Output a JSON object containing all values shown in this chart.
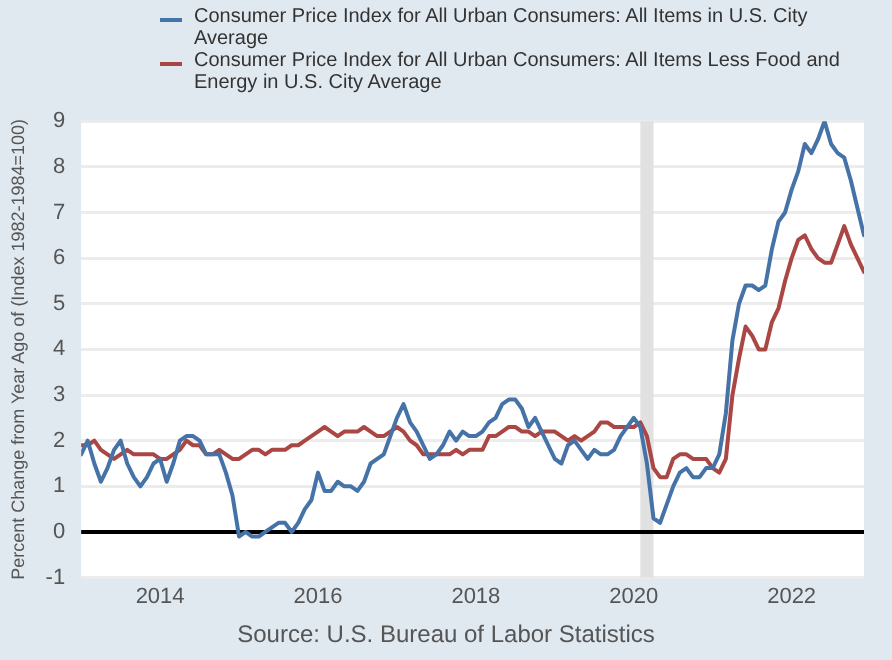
{
  "chart_data": {
    "type": "line",
    "ylabel": "Percent Change from Year Ago of (Index 1982-1984=100)",
    "x": [
      "2013-01",
      "2013-02",
      "2013-03",
      "2013-04",
      "2013-05",
      "2013-06",
      "2013-07",
      "2013-08",
      "2013-09",
      "2013-10",
      "2013-11",
      "2013-12",
      "2014-01",
      "2014-02",
      "2014-03",
      "2014-04",
      "2014-05",
      "2014-06",
      "2014-07",
      "2014-08",
      "2014-09",
      "2014-10",
      "2014-11",
      "2014-12",
      "2015-01",
      "2015-02",
      "2015-03",
      "2015-04",
      "2015-05",
      "2015-06",
      "2015-07",
      "2015-08",
      "2015-09",
      "2015-10",
      "2015-11",
      "2015-12",
      "2016-01",
      "2016-02",
      "2016-03",
      "2016-04",
      "2016-05",
      "2016-06",
      "2016-07",
      "2016-08",
      "2016-09",
      "2016-10",
      "2016-11",
      "2016-12",
      "2017-01",
      "2017-02",
      "2017-03",
      "2017-04",
      "2017-05",
      "2017-06",
      "2017-07",
      "2017-08",
      "2017-09",
      "2017-10",
      "2017-11",
      "2017-12",
      "2018-01",
      "2018-02",
      "2018-03",
      "2018-04",
      "2018-05",
      "2018-06",
      "2018-07",
      "2018-08",
      "2018-09",
      "2018-10",
      "2018-11",
      "2018-12",
      "2019-01",
      "2019-02",
      "2019-03",
      "2019-04",
      "2019-05",
      "2019-06",
      "2019-07",
      "2019-08",
      "2019-09",
      "2019-10",
      "2019-11",
      "2019-12",
      "2020-01",
      "2020-02",
      "2020-03",
      "2020-04",
      "2020-05",
      "2020-06",
      "2020-07",
      "2020-08",
      "2020-09",
      "2020-10",
      "2020-11",
      "2020-12",
      "2021-01",
      "2021-02",
      "2021-03",
      "2021-04",
      "2021-05",
      "2021-06",
      "2021-07",
      "2021-08",
      "2021-09",
      "2021-10",
      "2021-11",
      "2021-12",
      "2022-01",
      "2022-02",
      "2022-03",
      "2022-04",
      "2022-05",
      "2022-06",
      "2022-07",
      "2022-08",
      "2022-09",
      "2022-10",
      "2022-11",
      "2022-12"
    ],
    "series": [
      {
        "name": "Consumer Price Index for All Urban Consumers: All Items in U.S. City Average",
        "color": "#4572a7",
        "values": [
          1.7,
          2.0,
          1.5,
          1.1,
          1.4,
          1.8,
          2.0,
          1.5,
          1.2,
          1.0,
          1.2,
          1.5,
          1.6,
          1.1,
          1.5,
          2.0,
          2.1,
          2.1,
          2.0,
          1.7,
          1.7,
          1.7,
          1.3,
          0.8,
          -0.1,
          0.0,
          -0.1,
          -0.1,
          0.0,
          0.1,
          0.2,
          0.2,
          0.0,
          0.2,
          0.5,
          0.7,
          1.3,
          0.9,
          0.9,
          1.1,
          1.0,
          1.0,
          0.9,
          1.1,
          1.5,
          1.6,
          1.7,
          2.1,
          2.5,
          2.8,
          2.4,
          2.2,
          1.9,
          1.6,
          1.7,
          1.9,
          2.2,
          2.0,
          2.2,
          2.1,
          2.1,
          2.2,
          2.4,
          2.5,
          2.8,
          2.9,
          2.9,
          2.7,
          2.3,
          2.5,
          2.2,
          1.9,
          1.6,
          1.5,
          1.9,
          2.0,
          1.8,
          1.6,
          1.8,
          1.7,
          1.7,
          1.8,
          2.1,
          2.3,
          2.5,
          2.3,
          1.5,
          0.3,
          0.2,
          0.6,
          1.0,
          1.3,
          1.4,
          1.2,
          1.2,
          1.4,
          1.4,
          1.7,
          2.6,
          4.2,
          5.0,
          5.4,
          5.4,
          5.3,
          5.4,
          6.2,
          6.8,
          7.0,
          7.5,
          7.9,
          8.5,
          8.3,
          8.6,
          9.0,
          8.5,
          8.3,
          8.2,
          7.7,
          7.1,
          6.5
        ]
      },
      {
        "name": "Consumer Price Index for All Urban Consumers: All Items Less Food and Energy in U.S. City Average",
        "color": "#aa4643",
        "values": [
          1.9,
          1.9,
          2.0,
          1.8,
          1.7,
          1.6,
          1.7,
          1.8,
          1.7,
          1.7,
          1.7,
          1.7,
          1.6,
          1.6,
          1.7,
          1.8,
          2.0,
          1.9,
          1.9,
          1.7,
          1.7,
          1.8,
          1.7,
          1.6,
          1.6,
          1.7,
          1.8,
          1.8,
          1.7,
          1.8,
          1.8,
          1.8,
          1.9,
          1.9,
          2.0,
          2.1,
          2.2,
          2.3,
          2.2,
          2.1,
          2.2,
          2.2,
          2.2,
          2.3,
          2.2,
          2.1,
          2.1,
          2.2,
          2.3,
          2.2,
          2.0,
          1.9,
          1.7,
          1.7,
          1.7,
          1.7,
          1.7,
          1.8,
          1.7,
          1.8,
          1.8,
          1.8,
          2.1,
          2.1,
          2.2,
          2.3,
          2.3,
          2.2,
          2.2,
          2.1,
          2.2,
          2.2,
          2.2,
          2.1,
          2.0,
          2.1,
          2.0,
          2.1,
          2.2,
          2.4,
          2.4,
          2.3,
          2.3,
          2.3,
          2.3,
          2.4,
          2.1,
          1.4,
          1.2,
          1.2,
          1.6,
          1.7,
          1.7,
          1.6,
          1.6,
          1.6,
          1.4,
          1.3,
          1.6,
          3.0,
          3.8,
          4.5,
          4.3,
          4.0,
          4.0,
          4.6,
          4.9,
          5.5,
          6.0,
          6.4,
          6.5,
          6.2,
          6.0,
          5.9,
          5.9,
          6.3,
          6.7,
          6.3,
          6.0,
          5.7
        ]
      }
    ],
    "xlim": [
      "2013-01",
      "2022-12"
    ],
    "xticks": [
      "2014",
      "2016",
      "2018",
      "2020",
      "2022"
    ],
    "ylim": [
      -1,
      9
    ],
    "yticks": [
      -1,
      0,
      1,
      2,
      3,
      4,
      5,
      6,
      7,
      8,
      9
    ],
    "ref_lines": [
      {
        "axis": "y",
        "value": 0,
        "color": "#000000"
      }
    ],
    "bands": [
      {
        "axis": "x",
        "from": "2020-02",
        "to": "2020-04",
        "color": "#e1e1e1"
      }
    ],
    "grid": "y",
    "legend": "top",
    "line_style": "solid",
    "marker": "none",
    "annotations": [
      "Source: U.S. Bureau of Labor Statistics"
    ]
  }
}
